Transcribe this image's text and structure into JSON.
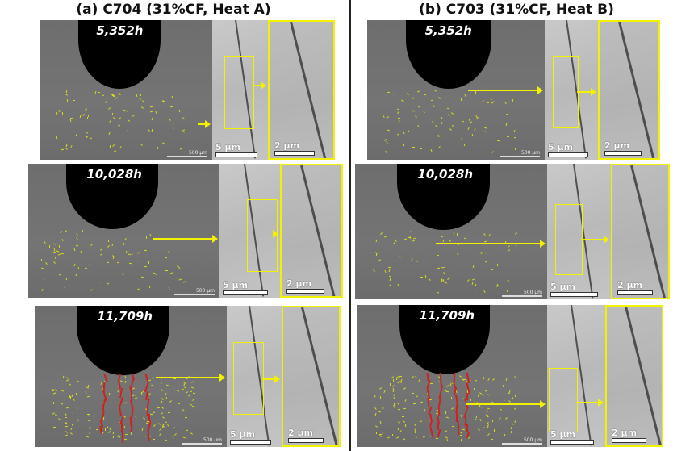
{
  "figure": {
    "columns": [
      {
        "title": "(a) C704 (31%CF, Heat A)",
        "rows": [
          {
            "hours": "5,352h",
            "macro_scale": "500 µm",
            "mid_scale": "5 µm",
            "zoom_scale": "2 µm",
            "red_cracks": false
          },
          {
            "hours": "10,028h",
            "macro_scale": "500 µm",
            "mid_scale": "5 µm",
            "zoom_scale": "2 µm",
            "red_cracks": false
          },
          {
            "hours": "11,709h",
            "macro_scale": "500 µm",
            "mid_scale": "5 µm",
            "zoom_scale": "2 µm",
            "red_cracks": true
          }
        ]
      },
      {
        "title": "(b) C703 (31%CF, Heat B)",
        "rows": [
          {
            "hours": "5,352h",
            "macro_scale": "500 µm",
            "mid_scale": "5 µm",
            "zoom_scale": "2 µm",
            "red_cracks": false
          },
          {
            "hours": "10,028h",
            "macro_scale": "500 µm",
            "mid_scale": "5 µm",
            "zoom_scale": "2 µm",
            "red_cracks": false
          },
          {
            "hours": "11,709h",
            "macro_scale": "500 µm",
            "mid_scale": "5 µm",
            "zoom_scale": "2 µm",
            "red_cracks": true
          }
        ]
      }
    ],
    "colors": {
      "highlight": "#f2f200",
      "crack_marker": "#d02020",
      "notch": "#000000"
    }
  }
}
